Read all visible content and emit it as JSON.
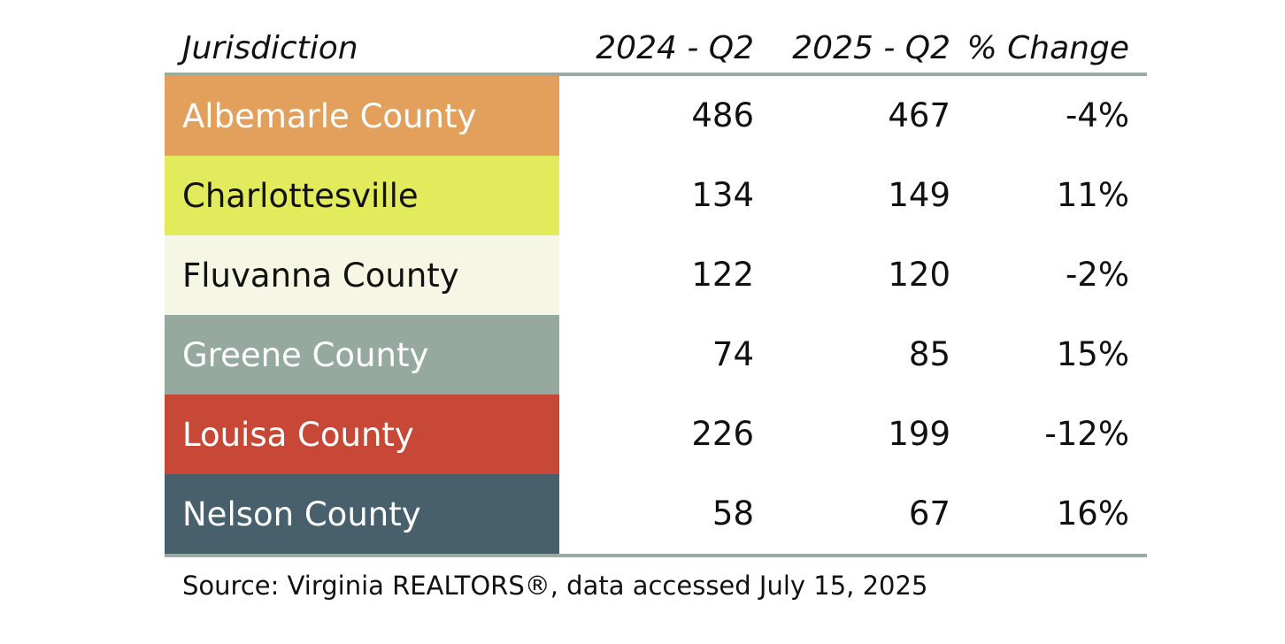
{
  "chart_data": {
    "type": "table",
    "columns": [
      "Jurisdiction",
      "2024 - Q2",
      "2025 - Q2",
      "% Change"
    ],
    "rows": [
      {
        "name": "Albemarle County",
        "y2024": "486",
        "y2025": "467",
        "change": "-4%",
        "color": "#e2a05c",
        "text_color": "#ffffff"
      },
      {
        "name": "Charlottesville",
        "y2024": "134",
        "y2025": "149",
        "change": "11%",
        "color": "#e1eb5c",
        "text_color": "#111111"
      },
      {
        "name": "Fluvanna County",
        "y2024": "122",
        "y2025": "120",
        "change": "-2%",
        "color": "#f5f6e3",
        "text_color": "#111111"
      },
      {
        "name": "Greene County",
        "y2024": "74",
        "y2025": "85",
        "change": "15%",
        "color": "#95a99e",
        "text_color": "#ffffff"
      },
      {
        "name": "Louisa County",
        "y2024": "226",
        "y2025": "199",
        "change": "-12%",
        "color": "#c74837",
        "text_color": "#ffffff"
      },
      {
        "name": "Nelson County",
        "y2024": "58",
        "y2025": "67",
        "change": "16%",
        "color": "#47606c",
        "text_color": "#ffffff"
      }
    ],
    "source": "Source: Virginia REALTORS®, data accessed July 15, 2025"
  }
}
